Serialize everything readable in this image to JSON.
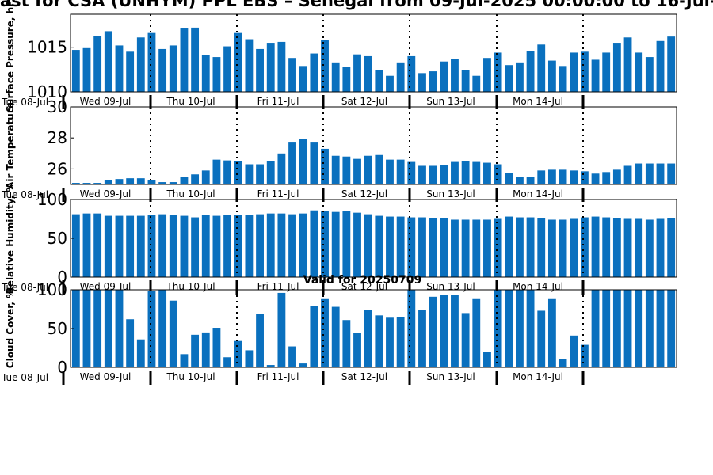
{
  "title": "ast for CSA (UNHYM) PPL EBS  – Senegal from 09-Jul-2025 00:00:00 to 16-Jul-2",
  "colors": {
    "bar": "#0a70be",
    "axis": "#000000",
    "background": "#ffffff"
  },
  "chart_data": [
    {
      "type": "bar",
      "ylabel": "Surface Pressure, hPa",
      "ylim": [
        1010,
        1018.7
      ],
      "yticks": [
        "1010",
        "1015"
      ],
      "grid": false,
      "x_start_label": "Tue 08-Jul",
      "day_labels": [
        "Wed 09-Jul",
        "Thu 10-Jul",
        "Fri 11-Jul",
        "Sat 12-Jul",
        "Sun 13-Jul",
        "Mon 14-Jul"
      ],
      "values": [
        1014.7,
        1014.9,
        1016.3,
        1016.8,
        1015.2,
        1014.5,
        1016.1,
        1016.6,
        1014.8,
        1015.2,
        1017.1,
        1017.2,
        1014.1,
        1013.9,
        1015.1,
        1016.6,
        1015.9,
        1014.8,
        1015.5,
        1015.6,
        1013.8,
        1012.9,
        1014.3,
        1015.8,
        1013.3,
        1012.8,
        1014.2,
        1014.0,
        1012.4,
        1011.8,
        1013.3,
        1014.0,
        1012.1,
        1012.3,
        1013.4,
        1013.7,
        1012.4,
        1011.8,
        1013.8,
        1014.4,
        1013.0,
        1013.3,
        1014.6,
        1015.3,
        1013.5,
        1012.9,
        1014.4,
        1014.5,
        1013.6,
        1014.4,
        1015.5,
        1016.1,
        1014.4,
        1013.9,
        1015.7,
        1016.2
      ]
    },
    {
      "type": "bar",
      "ylabel": "Air Temperature",
      "ylim": [
        25,
        30
      ],
      "yticks": [
        "26",
        "28",
        "30"
      ],
      "grid": false,
      "x_start_label": "Tue 08-Jul",
      "day_labels": [
        "Wed 09-Jul",
        "Thu 10-Jul",
        "Fri 11-Jul",
        "Sat 12-Jul",
        "Sun 13-Jul",
        "Mon 14-Jul"
      ],
      "values": [
        25.1,
        25.1,
        25.1,
        25.3,
        25.35,
        25.4,
        25.4,
        25.3,
        25.15,
        25.15,
        25.5,
        25.65,
        25.9,
        26.6,
        26.55,
        26.5,
        26.3,
        26.3,
        26.5,
        27.0,
        27.7,
        27.95,
        27.7,
        27.3,
        26.85,
        26.8,
        26.65,
        26.85,
        26.9,
        26.6,
        26.6,
        26.45,
        26.2,
        26.2,
        26.25,
        26.45,
        26.5,
        26.45,
        26.4,
        26.3,
        25.75,
        25.5,
        25.5,
        25.9,
        25.95,
        25.95,
        25.9,
        25.85,
        25.7,
        25.8,
        25.95,
        26.2,
        26.35,
        26.35,
        26.35,
        26.35
      ]
    },
    {
      "type": "bar",
      "ylabel": "Relative Humidity, %",
      "ylim": [
        0,
        100
      ],
      "yticks": [
        "0",
        "50",
        "100"
      ],
      "grid": false,
      "x_start_label": "Tue 08-Jul",
      "day_labels": [
        "Wed 09-Jul",
        "Thu 10-Jul",
        "Fri 11-Jul",
        "Sat 12-Jul",
        "Sun 13-Jul",
        "Mon 14-Jul"
      ],
      "values": [
        81,
        82,
        82,
        79,
        79,
        79,
        79,
        80,
        81,
        80,
        79,
        77,
        80,
        79,
        80,
        80,
        80,
        81,
        82,
        82,
        81,
        82,
        86,
        85,
        84,
        85,
        83,
        81,
        79,
        78,
        78,
        77,
        77,
        76,
        76,
        74,
        74,
        74,
        74,
        75,
        78,
        77,
        77,
        76,
        74,
        74,
        75,
        77,
        78,
        77,
        76,
        75,
        75,
        74,
        75,
        76
      ]
    },
    {
      "type": "bar",
      "ylabel": "Cloud Cover, %",
      "subtitle": "Valid for 20250709",
      "ylim": [
        0,
        100
      ],
      "yticks": [
        "0",
        "50",
        "100"
      ],
      "grid": false,
      "x_start_label": "Tue 08-Jul",
      "day_labels": [
        "Wed 09-Jul",
        "Thu 10-Jul",
        "Fri 11-Jul",
        "Sat 12-Jul",
        "Sun 13-Jul",
        "Mon 14-Jul"
      ],
      "values": [
        100,
        100,
        100,
        100,
        100,
        62,
        36,
        98,
        100,
        86,
        17,
        42,
        45,
        51,
        13,
        34,
        22,
        69,
        3,
        96,
        27,
        5,
        79,
        88,
        78,
        61,
        44,
        74,
        67,
        64,
        65,
        100,
        74,
        91,
        93,
        93,
        70,
        88,
        20,
        100,
        100,
        100,
        100,
        73,
        88,
        11,
        41,
        29,
        100,
        100,
        100,
        100,
        100,
        100,
        100,
        100
      ]
    }
  ]
}
